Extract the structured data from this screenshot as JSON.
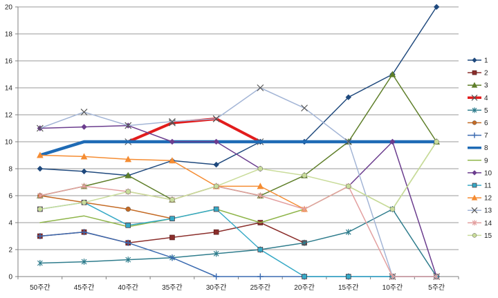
{
  "chart_data": {
    "type": "line",
    "title": "",
    "xlabel": "",
    "ylabel": "",
    "categories": [
      "50주간",
      "45주간",
      "40주간",
      "35주간",
      "30주간",
      "25주간",
      "20주간",
      "15주간",
      "10주간",
      "5주간"
    ],
    "ylim": [
      0,
      20
    ],
    "yticks": [
      0,
      2,
      4,
      6,
      8,
      10,
      12,
      14,
      16,
      18,
      20
    ],
    "grid": true,
    "legend_placement": "right",
    "series": [
      {
        "name": "1",
        "color": "#1f497d",
        "marker": "diamond",
        "width": 1.5,
        "values": [
          8,
          7.8,
          7.5,
          8.6,
          8.3,
          10,
          10,
          13.3,
          15,
          20
        ]
      },
      {
        "name": "2",
        "color": "#8b2e2b",
        "marker": "square",
        "width": 1.5,
        "values": [
          3,
          3.3,
          2.5,
          2.9,
          3.3,
          4,
          2.5,
          null,
          null,
          null
        ]
      },
      {
        "name": "3",
        "color": "#5f7f2a",
        "marker": "triangle",
        "width": 1.5,
        "values": [
          6,
          6.7,
          7.5,
          5.7,
          6.7,
          6,
          7.5,
          10,
          15,
          10
        ]
      },
      {
        "name": "4",
        "color": "#e21c1c",
        "marker": "x",
        "width": 4,
        "values": [
          null,
          null,
          10,
          11.4,
          11.7,
          10,
          null,
          null,
          null,
          null
        ]
      },
      {
        "name": "5",
        "color": "#2e7c8c",
        "marker": "star",
        "width": 1.5,
        "values": [
          1,
          1.1,
          1.25,
          1.4,
          1.7,
          2,
          2.5,
          3.3,
          5,
          0
        ]
      },
      {
        "name": "6",
        "color": "#c46a24",
        "marker": "circle",
        "width": 1.5,
        "values": [
          6,
          5.5,
          5,
          4.3,
          null,
          null,
          null,
          null,
          null,
          null
        ]
      },
      {
        "name": "7",
        "color": "#3a6ab0",
        "marker": "plus",
        "width": 1.5,
        "values": [
          3,
          3.3,
          2.5,
          1.4,
          0,
          0,
          0,
          0,
          0,
          0
        ]
      },
      {
        "name": "8",
        "color": "#1f6bb5",
        "marker": "none",
        "width": 4.5,
        "values": [
          9,
          10,
          10,
          10,
          10,
          10,
          10,
          10,
          10,
          10
        ]
      },
      {
        "name": "9",
        "color": "#8fb54a",
        "marker": "none",
        "width": 1.5,
        "values": [
          4,
          4.5,
          3.7,
          4.3,
          5,
          4,
          5,
          6.7,
          5,
          10
        ]
      },
      {
        "name": "10",
        "color": "#6b3d8e",
        "marker": "diamond",
        "width": 1.5,
        "values": [
          11,
          11.1,
          11.2,
          10,
          10,
          8,
          null,
          6.7,
          10,
          0
        ]
      },
      {
        "name": "11",
        "color": "#36a9c6",
        "marker": "square",
        "width": 1.5,
        "values": [
          5,
          5.5,
          3.8,
          4.3,
          5,
          2,
          0,
          0,
          0,
          0
        ]
      },
      {
        "name": "12",
        "color": "#f58c32",
        "marker": "triangle",
        "width": 1.5,
        "values": [
          9,
          8.9,
          8.7,
          8.6,
          6.7,
          6.7,
          5,
          null,
          null,
          null
        ]
      },
      {
        "name": "13",
        "color": "#a3b5d6",
        "marker": "x",
        "width": 1.5,
        "values": [
          11,
          12.2,
          11.2,
          11.5,
          11.7,
          14,
          12.5,
          10,
          0,
          0
        ]
      },
      {
        "name": "14",
        "color": "#e3a0a0",
        "marker": "star",
        "width": 1.5,
        "values": [
          6,
          6.7,
          6.3,
          5.7,
          6.7,
          6,
          5,
          6.7,
          0,
          0
        ]
      },
      {
        "name": "15",
        "color": "#c9dc9a",
        "marker": "circle",
        "width": 1.5,
        "values": [
          5,
          5.5,
          6.3,
          5.7,
          6.7,
          8,
          7.5,
          6.7,
          5,
          10
        ]
      }
    ]
  }
}
